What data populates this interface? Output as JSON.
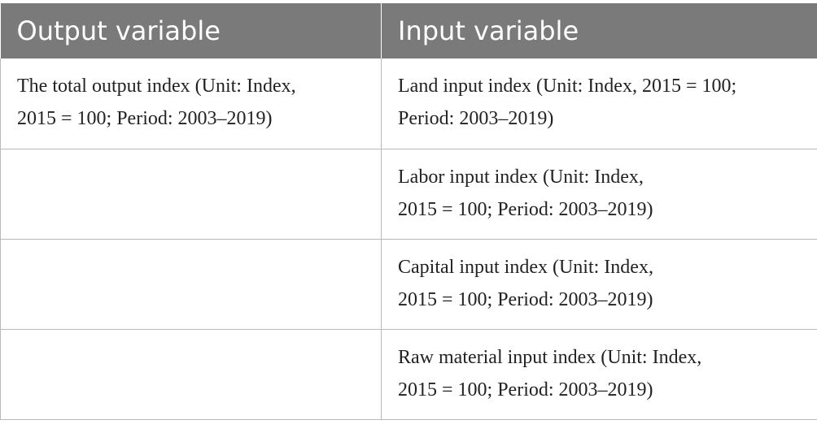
{
  "table": {
    "headers": [
      "Output variable",
      "Input variable"
    ],
    "rows": [
      {
        "output": [
          "The total output index (Unit: Index,",
          "2015 = 100; Period: 2003–2019)"
        ],
        "input": [
          "Land input index (Unit: Index, 2015 = 100;",
          "Period: 2003–2019)"
        ]
      },
      {
        "output": [
          "",
          ""
        ],
        "input": [
          "Labor input index (Unit: Index,",
          "2015 = 100; Period: 2003–2019)"
        ]
      },
      {
        "output": [
          "",
          ""
        ],
        "input": [
          "Capital input index (Unit: Index,",
          "2015 = 100; Period: 2003–2019)"
        ]
      },
      {
        "output": [
          "",
          ""
        ],
        "input": [
          "Raw material input index (Unit: Index,",
          "2015 = 100; Period: 2003–2019)"
        ]
      }
    ]
  }
}
